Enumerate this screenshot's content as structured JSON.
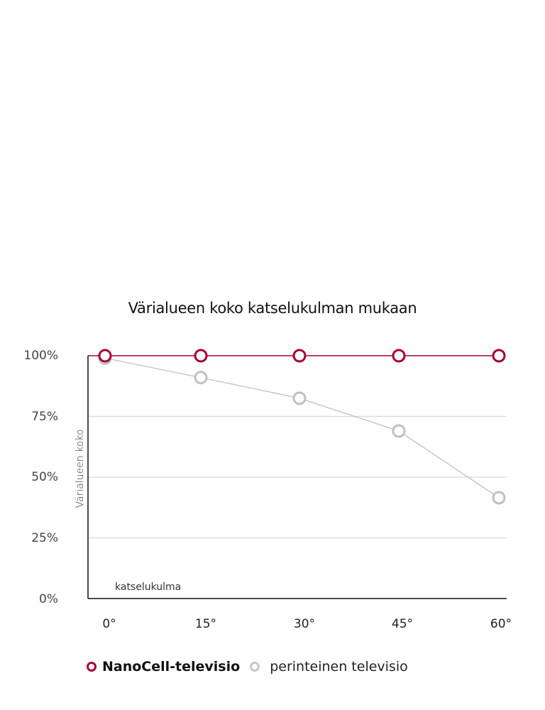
{
  "chart_data": {
    "type": "line",
    "title": "Värialueen koko katselukulman mukaan",
    "xlabel": "katselukulma",
    "ylabel": "Värialueen koko",
    "categories": [
      "0°",
      "15°",
      "30°",
      "45°",
      "60°"
    ],
    "x": [
      0,
      15,
      30,
      45,
      60
    ],
    "yticks": [
      "100%",
      "75%",
      "50%",
      "25%",
      "0%"
    ],
    "ylim": [
      0,
      100
    ],
    "grid": true,
    "legend_position": "bottom",
    "series": [
      {
        "name": "NanoCell-televisio",
        "color": "#a50034",
        "values": [
          100,
          100,
          100,
          100,
          100
        ]
      },
      {
        "name": "perinteinen televisio",
        "color": "#c0c0c0",
        "values": [
          99,
          91,
          82.5,
          69,
          41.5
        ]
      }
    ]
  },
  "colors": {
    "nanocell": "#a50034",
    "conventional": "#c0c0c0",
    "grid": "#d9d9d9",
    "axis": "#111111"
  }
}
